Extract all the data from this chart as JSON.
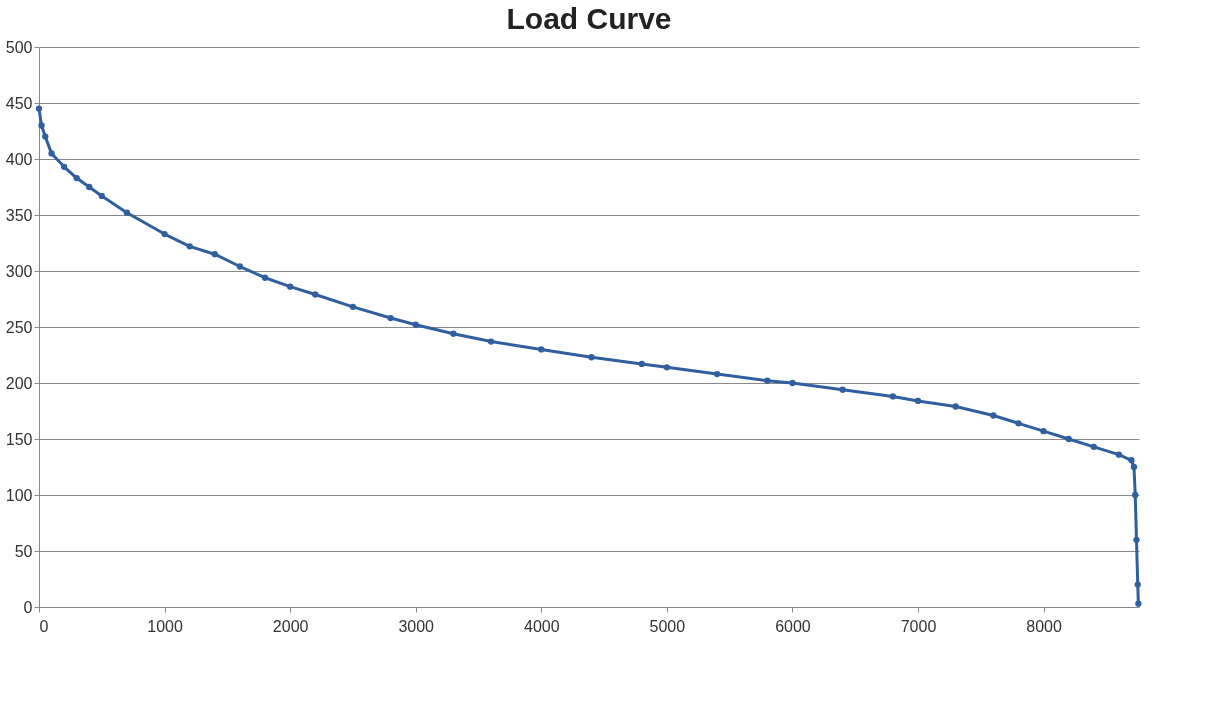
{
  "chart_data": {
    "type": "line",
    "title": "Load Curve",
    "x": [
      0,
      20,
      50,
      100,
      200,
      300,
      400,
      500,
      700,
      1000,
      1200,
      1400,
      1600,
      1800,
      2000,
      2200,
      2500,
      2800,
      3000,
      3300,
      3600,
      4000,
      4400,
      4800,
      5000,
      5400,
      5800,
      6000,
      6400,
      6800,
      7000,
      7300,
      7600,
      7800,
      8000,
      8200,
      8400,
      8600,
      8700,
      8720,
      8730,
      8740,
      8750,
      8755
    ],
    "series": [
      {
        "color": "#2f5f9e",
        "values": [
          445,
          430,
          420,
          405,
          393,
          383,
          375,
          367,
          352,
          333,
          322,
          315,
          304,
          294,
          286,
          279,
          268,
          258,
          252,
          244,
          237,
          230,
          223,
          217,
          214,
          208,
          202,
          200,
          194,
          188,
          184,
          179,
          171,
          164,
          157,
          150,
          143,
          136,
          131,
          125,
          100,
          60,
          20,
          3
        ]
      }
    ],
    "xlim": [
      0,
      8760
    ],
    "xticks": [
      0,
      1000,
      2000,
      3000,
      4000,
      5000,
      6000,
      7000,
      8000
    ],
    "ylim": [
      0,
      500
    ],
    "yticks": [
      0,
      50,
      100,
      150,
      200,
      250,
      300,
      350,
      400,
      450,
      500
    ],
    "grid": "y",
    "marker": "circle",
    "line_style": "solid"
  }
}
